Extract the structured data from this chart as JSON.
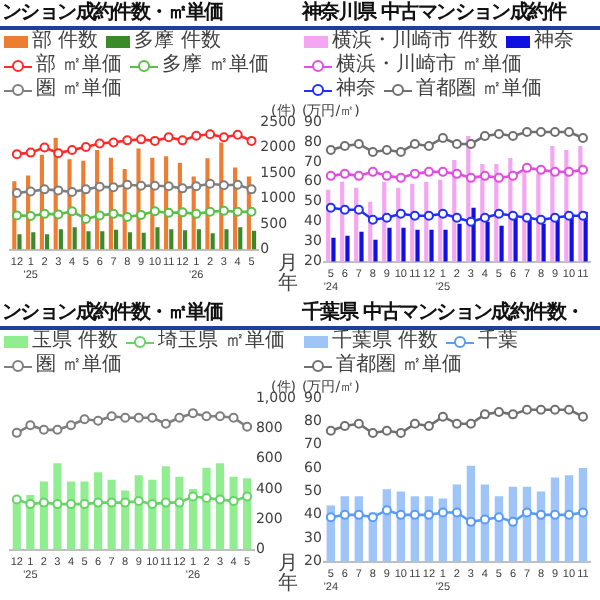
{
  "chart_data": [
    {
      "type": "bar",
      "title": "ンション成約件数・㎡単価",
      "categories": [
        "12",
        "1\n'25",
        "2",
        "3",
        "4",
        "5",
        "6",
        "7",
        "8",
        "9",
        "10",
        "11",
        "12",
        "1\n'26",
        "2",
        "3",
        "4",
        "5"
      ],
      "xlabel": "月年",
      "y2label": "(件)",
      "y2lim": [
        0,
        2500
      ],
      "y2ticks": [
        0,
        500,
        1000,
        1500,
        2000,
        2500
      ],
      "legend": "top",
      "marker": "circle",
      "series": [
        {
          "name": "部 件数",
          "color": "#ed7d31",
          "axis": "y2",
          "values": [
            1340,
            1450,
            1860,
            2190,
            1770,
            1740,
            1950,
            1800,
            1580,
            1980,
            1800,
            1830,
            1700,
            1430,
            1790,
            2100,
            1610,
            1430
          ]
        },
        {
          "name": "多摩 件数",
          "color": "#3a8a2a",
          "axis": "y2",
          "values": [
            300,
            340,
            300,
            400,
            440,
            360,
            360,
            390,
            340,
            330,
            440,
            400,
            380,
            400,
            320,
            400,
            440,
            370
          ]
        },
        {
          "type": "line",
          "name": "部 ㎡単価",
          "color": "#ff2a2a",
          "axis": "y2",
          "values": [
            1870,
            1900,
            2000,
            1890,
            1950,
            2010,
            2080,
            2100,
            2140,
            2160,
            2130,
            2200,
            2140,
            2230,
            2260,
            2200,
            2250,
            2130
          ]
        },
        {
          "type": "line",
          "name": "多摩 ㎡単価",
          "color": "#5cbf4a",
          "axis": "y2",
          "values": [
            670,
            660,
            700,
            690,
            750,
            600,
            670,
            700,
            640,
            680,
            750,
            720,
            730,
            700,
            740,
            760,
            740,
            740
          ]
        },
        {
          "type": "line",
          "name": "圏 ㎡単価",
          "color": "#7f7f7f",
          "axis": "y2",
          "values": [
            1110,
            1140,
            1180,
            1160,
            1130,
            1180,
            1230,
            1220,
            1270,
            1250,
            1250,
            1240,
            1200,
            1240,
            1290,
            1260,
            1270,
            1180
          ]
        }
      ]
    },
    {
      "type": "bar",
      "title": "神奈川県 中古マンション成約件",
      "categories": [
        "5\n'24",
        "6",
        "7",
        "8",
        "9",
        "10",
        "11",
        "12",
        "1\n'25",
        "2",
        "3",
        "4",
        "5",
        "6",
        "7",
        "8",
        "9",
        "10",
        "11"
      ],
      "ylabel": "(万円/㎡)",
      "ylim": [
        20,
        90
      ],
      "yticks": [
        20,
        30,
        40,
        50,
        60,
        70,
        80,
        90
      ],
      "legend": "top",
      "marker": "circle",
      "series": [
        {
          "name": "横浜・川崎市 件数",
          "color": "#f4a6f0",
          "axis": "y",
          "values": [
            56,
            60,
            57,
            50,
            60,
            57,
            59,
            60,
            61,
            71,
            83,
            69,
            69,
            72,
            65,
            64,
            78,
            76,
            78
          ]
        },
        {
          "name": "神奈",
          "color": "#1010e0",
          "axis": "y",
          "values": [
            32,
            33,
            35,
            31,
            37,
            37,
            36,
            36,
            36,
            39,
            47,
            40,
            38,
            42,
            41,
            39,
            42,
            43,
            45
          ]
        },
        {
          "type": "line",
          "name": "横浜・川崎市 ㎡単価",
          "color": "#e050e0",
          "axis": "y",
          "values": [
            63,
            64,
            63,
            65,
            63,
            62,
            64,
            65,
            65,
            64,
            62,
            63,
            62,
            63,
            67,
            66,
            65,
            65,
            66
          ]
        },
        {
          "type": "line",
          "name": "神奈",
          "color": "#2030ff",
          "axis": "y",
          "values": [
            47,
            46,
            46,
            41,
            42,
            44,
            43,
            43,
            44,
            42,
            40,
            42,
            44,
            43,
            42,
            41,
            42,
            43,
            43
          ]
        },
        {
          "type": "line",
          "name": "首都圏 ㎡単価",
          "color": "#707070",
          "axis": "y",
          "values": [
            76,
            78,
            79,
            75,
            76,
            75,
            79,
            78,
            82,
            79,
            79,
            83,
            84,
            83,
            85,
            85,
            85,
            85,
            82
          ]
        }
      ]
    },
    {
      "type": "bar",
      "title": "ンション成約件数・㎡単価",
      "categories": [
        "12",
        "1\n'25",
        "2",
        "3",
        "4",
        "5",
        "6",
        "7",
        "8",
        "9",
        "10",
        "11",
        "12",
        "1\n'26",
        "2",
        "3",
        "4",
        "5"
      ],
      "xlabel": "月年",
      "y2label": "(件)",
      "y2lim": [
        0,
        1000
      ],
      "y2ticks": [
        0,
        200,
        400,
        600,
        800,
        {
          "value": 1000,
          "label": "1,000"
        }
      ],
      "legend": "top",
      "marker": "circle",
      "series": [
        {
          "name": "玉県 件数",
          "color": "#90ee90",
          "axis": "y2",
          "values": [
            330,
            360,
            450,
            570,
            450,
            450,
            510,
            460,
            390,
            490,
            460,
            550,
            480,
            400,
            540,
            570,
            480,
            470
          ]
        },
        {
          "type": "line",
          "name": "埼玉県 ㎡単価",
          "color": "#66d466",
          "axis": "y2",
          "values": [
            330,
            300,
            310,
            300,
            300,
            300,
            310,
            310,
            310,
            320,
            300,
            310,
            310,
            350,
            340,
            330,
            320,
            350
          ]
        },
        {
          "type": "line",
          "name": "圏 ㎡単価",
          "color": "#7f7f7f",
          "axis": "y2",
          "values": [
            770,
            820,
            790,
            790,
            820,
            860,
            850,
            880,
            870,
            870,
            870,
            830,
            870,
            900,
            880,
            880,
            870,
            810
          ]
        }
      ]
    },
    {
      "type": "bar",
      "title": "千葉県 中古マンション成約件数・",
      "categories": [
        "5\n'24",
        "6",
        "7",
        "8",
        "9",
        "10",
        "11",
        "12",
        "1\n'25",
        "2",
        "3",
        "4",
        "5",
        "6",
        "7",
        "8",
        "9",
        "10",
        "11"
      ],
      "ylabel": "(万円/㎡)",
      "ylim": [
        20,
        90
      ],
      "yticks": [
        20,
        30,
        40,
        50,
        60,
        70,
        80,
        90
      ],
      "legend": "top",
      "marker": "circle",
      "series": [
        {
          "name": "千葉県 件数",
          "color": "#9fc5f8",
          "axis": "y",
          "values": [
            44,
            48,
            48,
            41,
            51,
            50,
            48,
            48,
            47,
            53,
            61,
            53,
            48,
            52,
            52,
            50,
            56,
            57,
            60
          ]
        },
        {
          "type": "line",
          "name": "千葉",
          "color": "#5b9bf8",
          "axis": "y",
          "values": [
            39,
            40,
            40,
            39,
            42,
            40,
            40,
            40,
            41,
            41,
            37,
            38,
            39,
            37,
            41,
            40,
            40,
            40,
            41
          ]
        },
        {
          "type": "line",
          "name": "首都圏 ㎡単価",
          "color": "#707070",
          "axis": "y",
          "values": [
            76,
            78,
            79,
            75,
            76,
            75,
            79,
            78,
            82,
            79,
            79,
            83,
            84,
            83,
            85,
            85,
            85,
            85,
            82
          ]
        }
      ]
    }
  ]
}
